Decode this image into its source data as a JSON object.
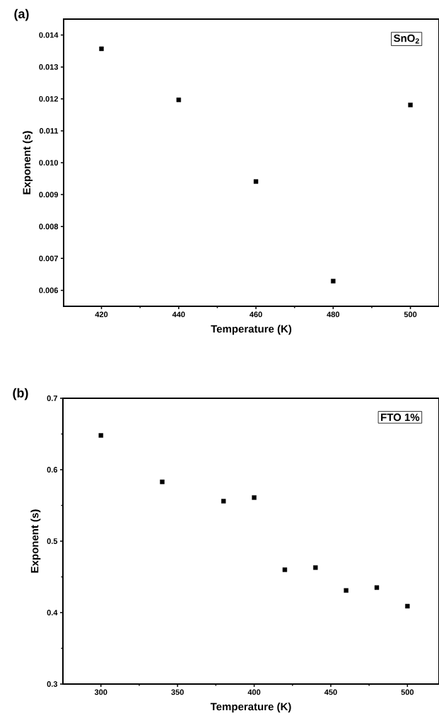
{
  "chart_data": [
    {
      "type": "scatter",
      "title": "(a)",
      "xlabel": "Temperature (K)",
      "ylabel": "Exponent (s)",
      "annotations": [
        "SnO$_{2}$"
      ],
      "marker": "square",
      "x": [
        420,
        440,
        460,
        480,
        500
      ],
      "series": [
        {
          "color": "#000000",
          "values": [
            0.01357,
            0.01197,
            0.00941,
            0.00629,
            0.01181
          ]
        }
      ],
      "xlim": [
        410.2,
        507.4
      ],
      "ylim": [
        0.0055,
        0.0145
      ],
      "xticks": [
        420,
        440,
        460,
        480,
        500
      ],
      "yticks": [
        0.006,
        0.007,
        0.008,
        0.009,
        {
          "value": 0.01,
          "label": "0.010"
        },
        0.011,
        0.012,
        0.013,
        0.014
      ]
    },
    {
      "type": "scatter",
      "title": "(b)",
      "xlabel": "Temperature (K)",
      "ylabel": "Exponent (s)",
      "annotations": [
        "FTO 1%"
      ],
      "marker": "square",
      "x": [
        300,
        340,
        380,
        400,
        420,
        440,
        460,
        480,
        500
      ],
      "series": [
        {
          "color": "#000000",
          "values": [
            0.648,
            0.583,
            0.556,
            0.561,
            0.46,
            0.463,
            0.431,
            0.435,
            0.409
          ]
        }
      ],
      "xlim": [
        275.2,
        520.6
      ],
      "ylim": [
        0.3,
        0.7
      ],
      "xticks": [
        300,
        350,
        400,
        450,
        500
      ],
      "yticks": [
        0.3,
        0.4,
        0.5,
        0.6,
        0.7
      ]
    }
  ]
}
